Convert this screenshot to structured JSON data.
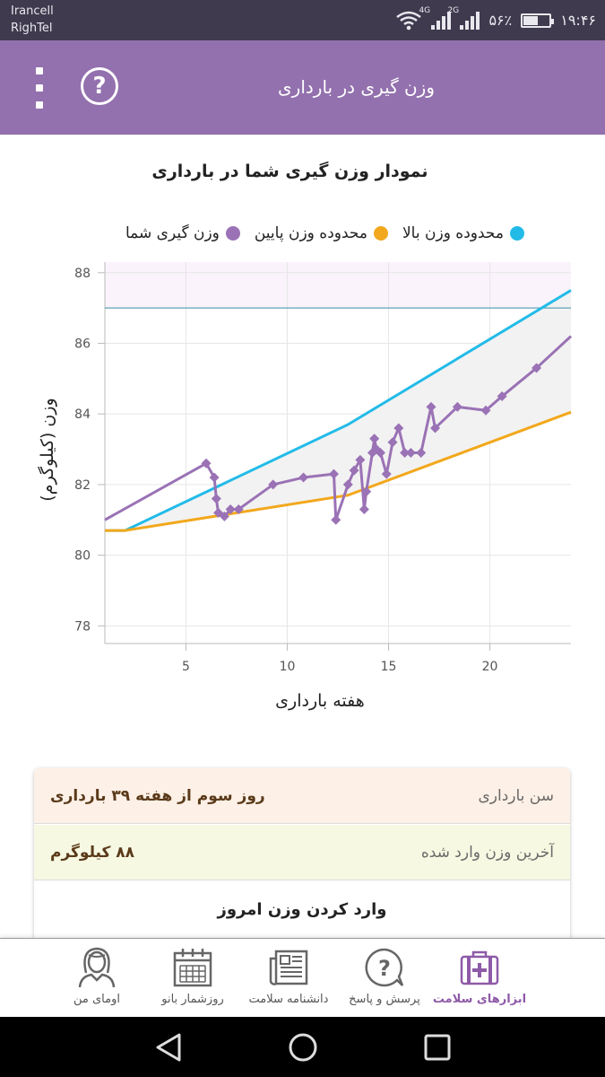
{
  "status_bar": {
    "carrier_1": "Irancell",
    "carrier_2": "RighTel",
    "net_1": "4G",
    "net_2": "2G",
    "battery_text": "۵۶٪",
    "battery_level": 0.56,
    "time": "۱۹:۴۶",
    "icons": [
      "wifi-icon",
      "signal-icon",
      "battery-icon"
    ]
  },
  "app_bar": {
    "title": "وزن گیری در بارداری",
    "help_symbol": "?",
    "icons": [
      "more-vert-icon",
      "help-circle-icon"
    ]
  },
  "chart_heading": "نمودار وزن گیری شما در بارداری",
  "legend": [
    {
      "label": "محدوده وزن بالا",
      "color": "#22bbe8"
    },
    {
      "label": "محدوده وزن پایین",
      "color": "#f2a81c"
    },
    {
      "label": "وزن گیری شما",
      "color": "#9a72b5"
    }
  ],
  "chart_data": {
    "type": "line",
    "title": "نمودار وزن گیری شما در بارداری",
    "xlabel": "هفته بارداری",
    "ylabel": "وزن (کیلوگرم)",
    "xlim": [
      1,
      24
    ],
    "ylim": [
      77.5,
      88.3
    ],
    "xticks": [
      5,
      10,
      15,
      20
    ],
    "yticks": [
      78,
      80,
      82,
      84,
      86,
      88
    ],
    "grid": true,
    "legend_position": "top",
    "reference_line_y": 87,
    "series": [
      {
        "name": "محدوده وزن بالا",
        "color": "#22bbe8",
        "x": [
          1,
          2,
          13,
          24
        ],
        "y": [
          80.7,
          80.7,
          83.7,
          87.5
        ]
      },
      {
        "name": "محدوده وزن پایین",
        "color": "#f2a81c",
        "x": [
          1,
          2,
          13,
          24
        ],
        "y": [
          80.7,
          80.7,
          81.7,
          84.05
        ]
      },
      {
        "name": "وزن گیری شما",
        "color": "#9a72b5",
        "x": [
          1,
          6.0,
          6.4,
          6.5,
          6.6,
          6.9,
          7.2,
          7.6,
          9.3,
          10.8,
          12.3,
          12.4,
          13.0,
          13.3,
          13.6,
          13.8,
          13.9,
          14.2,
          14.3,
          14.4,
          14.6,
          14.9,
          15.2,
          15.5,
          15.8,
          16.1,
          16.6,
          17.1,
          17.3,
          18.4,
          19.8,
          20.6,
          22.3,
          24
        ],
        "y": [
          81.0,
          82.6,
          82.2,
          81.6,
          81.2,
          81.1,
          81.3,
          81.3,
          82.0,
          82.2,
          82.3,
          81.0,
          82.0,
          82.4,
          82.7,
          81.3,
          81.8,
          82.9,
          83.3,
          83.0,
          82.9,
          82.3,
          83.2,
          83.6,
          82.9,
          82.9,
          82.9,
          84.2,
          83.6,
          84.2,
          84.1,
          84.5,
          85.3,
          86.2
        ],
        "marker_from_index": 1,
        "marker_to_index": 32
      }
    ]
  },
  "info_card": {
    "pregnancy_age_label": "سن بارداری",
    "pregnancy_age_value": "روز سوم از هفته ۳۹ بارداری",
    "last_weight_label": "آخرین وزن وارد شده",
    "last_weight_value": "۸۸ کیلوگرم",
    "enter_weight_button": "وارد کردن وزن امروز"
  },
  "bottom_nav": [
    {
      "label": "ابزارهای سلامت",
      "icon": "medical-kit-icon",
      "active": true
    },
    {
      "label": "پرسش و پاسخ",
      "icon": "question-bubble-icon",
      "active": false
    },
    {
      "label": "دانشنامه سلامت",
      "icon": "newspaper-icon",
      "active": false
    },
    {
      "label": "روزشمار بانو",
      "icon": "calendar-icon",
      "active": false
    },
    {
      "label": "اومای من",
      "icon": "woman-avatar-icon",
      "active": false
    }
  ],
  "system_nav": {
    "icons": [
      "back-icon",
      "home-icon",
      "recents-icon"
    ]
  }
}
